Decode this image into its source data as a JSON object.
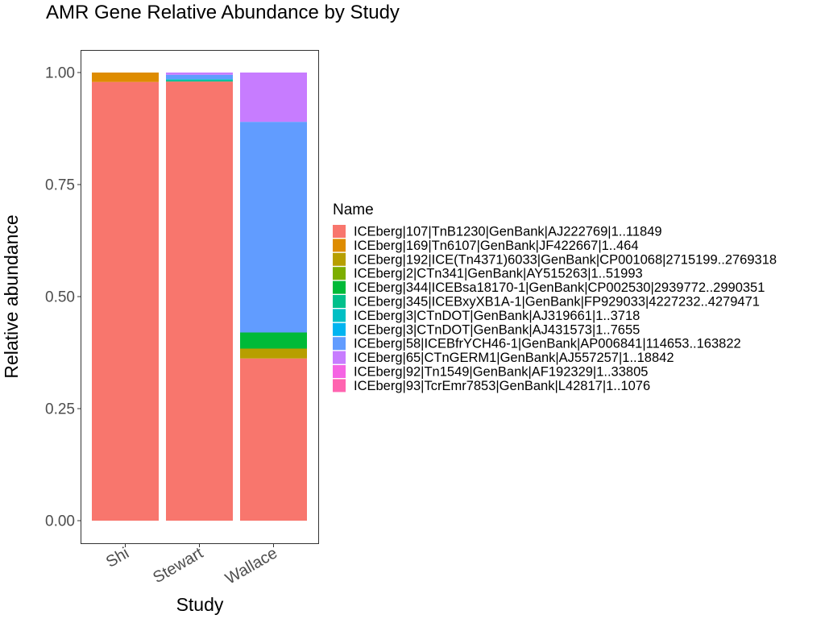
{
  "chart_data": {
    "type": "bar",
    "stacked": true,
    "title": "AMR Gene Relative Abundance by Study",
    "xlabel": "Study",
    "ylabel": "Relative abundance",
    "ylim": [
      0,
      1.05
    ],
    "yticks": [
      0,
      0.25,
      0.5,
      0.75,
      1.0
    ],
    "ytick_labels": [
      "0.00",
      "0.25",
      "0.50",
      "0.75",
      "1.00"
    ],
    "grid": false,
    "legend_title": "Name",
    "legend_position": "right",
    "categories": [
      "Shi",
      "Stewart",
      "Wallace"
    ],
    "series": [
      {
        "name": "ICEberg|107|TnB1230|GenBank|AJ222769|1..11849",
        "color": "#F8766D",
        "values": [
          0.979,
          0.98,
          0.362
        ]
      },
      {
        "name": "ICEberg|169|Tn6107|GenBank|JF422667|1..464",
        "color": "#DE8C00",
        "values": [
          0.021,
          0.0,
          0.0
        ]
      },
      {
        "name": "ICEberg|192|ICE(Tn4371)6033|GenBank|CP001068|2715199..2769318",
        "color": "#B79F00",
        "values": [
          0.0,
          0.0,
          0.022
        ]
      },
      {
        "name": "ICEberg|2|CTn341|GenBank|AY515263|1..51993",
        "color": "#7CAE00",
        "values": [
          0.0,
          0.0,
          0.0
        ]
      },
      {
        "name": "ICEberg|344|ICEBsa18170-1|GenBank|CP002530|2939772..2990351",
        "color": "#00BA38",
        "values": [
          0.0,
          0.0,
          0.036
        ]
      },
      {
        "name": "ICEberg|345|ICEBxyXB1A-1|GenBank|FP929033|4227232..4279471",
        "color": "#00C08B",
        "values": [
          0.0,
          0.003,
          0.0
        ]
      },
      {
        "name": "ICEberg|3|CTnDOT|GenBank|AJ319661|1..3718",
        "color": "#00BFC4",
        "values": [
          0.0,
          0.002,
          0.0
        ]
      },
      {
        "name": "ICEberg|3|CTnDOT|GenBank|AJ431573|1..7655",
        "color": "#00B4F0",
        "values": [
          0.0,
          0.0,
          0.0
        ]
      },
      {
        "name": "ICEberg|58|ICEBfrYCH46-1|GenBank|AP006841|114653..163822",
        "color": "#619CFF",
        "values": [
          0.0,
          0.01,
          0.47
        ]
      },
      {
        "name": "ICEberg|65|CTnGERM1|GenBank|AJ557257|1..18842",
        "color": "#C77CFF",
        "values": [
          0.0,
          0.005,
          0.11
        ]
      },
      {
        "name": "ICEberg|92|Tn1549|GenBank|AF192329|1..33805",
        "color": "#F564E3",
        "values": [
          0.0,
          0.0,
          0.0
        ]
      },
      {
        "name": "ICEberg|93|TcrEmr7853|GenBank|L42817|1..1076",
        "color": "#FF64B0",
        "values": [
          0.0,
          0.0,
          0.0
        ]
      }
    ]
  }
}
